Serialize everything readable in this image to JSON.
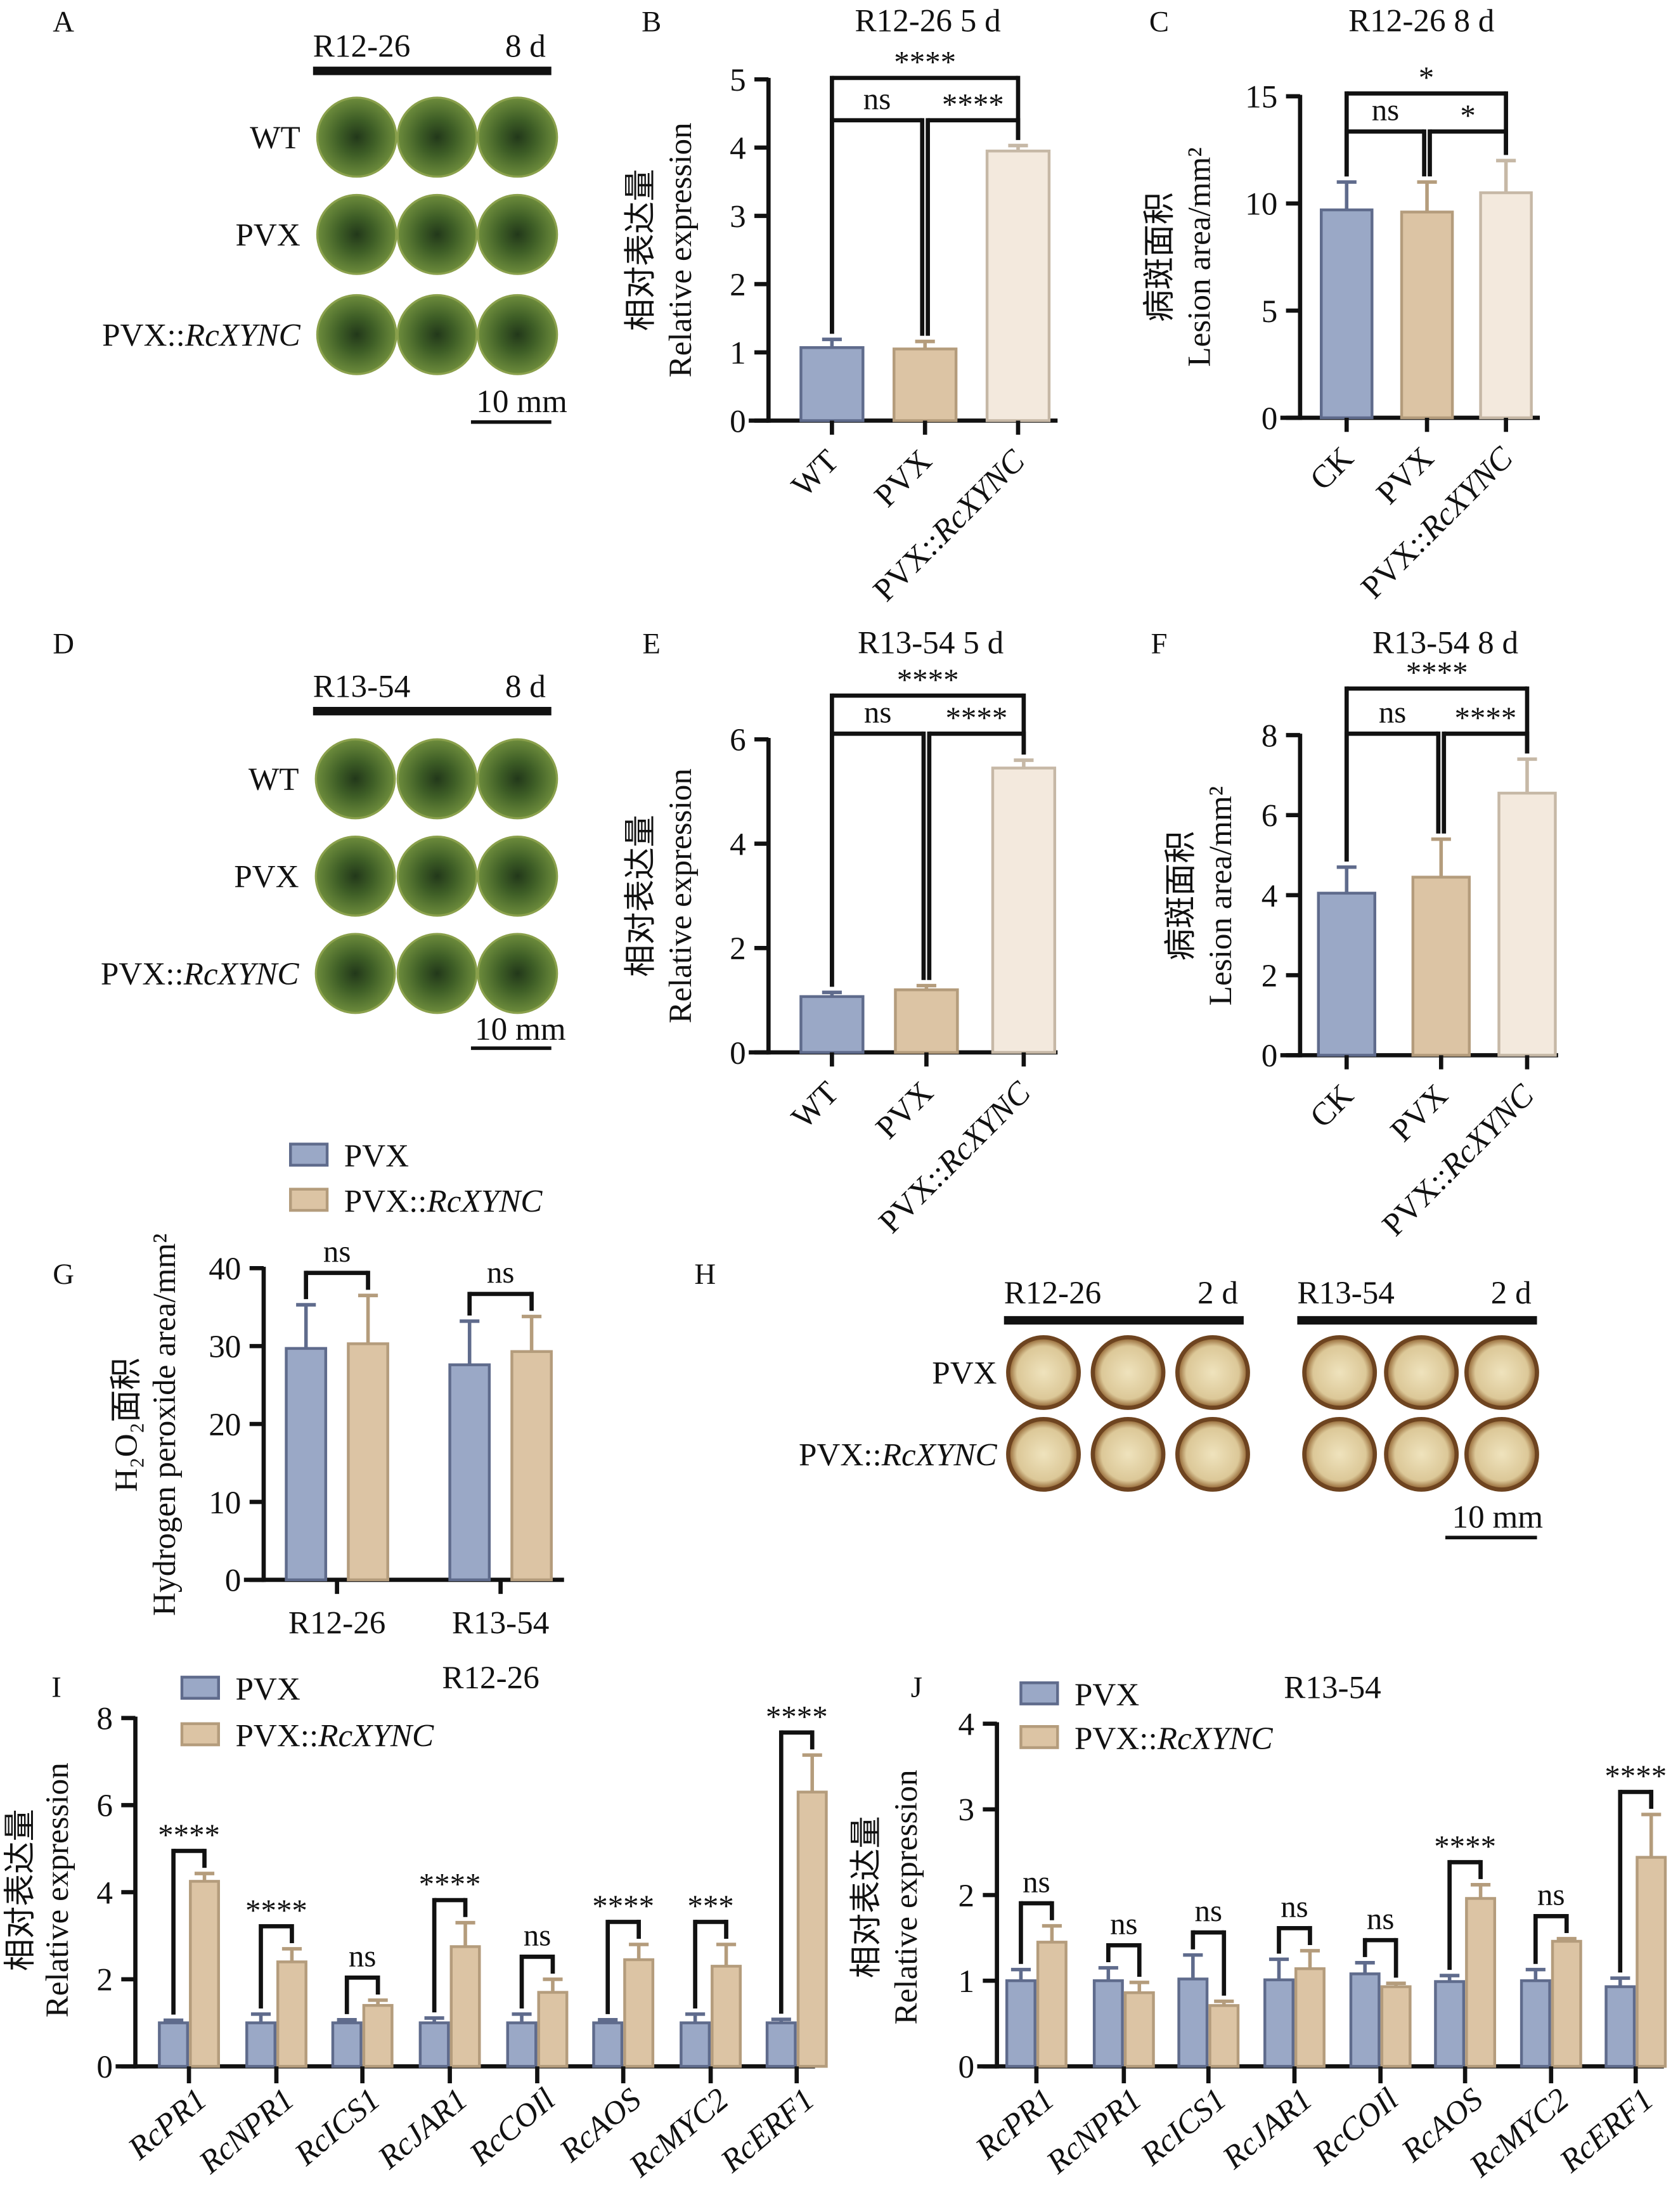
{
  "colors": {
    "blue": "#9aa8c6",
    "blue_edge": "#5f6b8c",
    "tan": "#dcc4a4",
    "tan_edge": "#b49c7c",
    "cream": "#f3e9dd",
    "cream_edge": "#c6b8a6",
    "leaf_dark": "#2e4a1c",
    "leaf_light": "#6d8c3c",
    "stain_edge": "#6e4420",
    "stain_fill": "#e2d3a8"
  },
  "photos": [
    {
      "panel": "A",
      "header": "R12-26",
      "time": "8 d",
      "rows": [
        "WT",
        "PVX",
        "PVX::RcXYNC"
      ],
      "scale": "10 mm",
      "style": "leaf"
    },
    {
      "panel": "D",
      "header": "R13-54",
      "time": "8 d",
      "rows": [
        "WT",
        "PVX",
        "PVX::RcXYNC"
      ],
      "scale": "10 mm",
      "style": "leaf"
    },
    {
      "panel": "H",
      "groups": [
        {
          "header": "R12-26",
          "time": "2 d"
        },
        {
          "header": "R13-54",
          "time": "2 d"
        }
      ],
      "rows": [
        "PVX",
        "PVX::RcXYNC"
      ],
      "scale": "10 mm",
      "style": "dab"
    }
  ],
  "chart_data": [
    {
      "panel": "B",
      "type": "bar",
      "title": "R12-26  5 d",
      "ylabel": [
        "相对表达量",
        "Relative expression"
      ],
      "categories": [
        "WT",
        "PVX",
        "PVX::RcXYNC"
      ],
      "values": [
        1.07,
        1.05,
        3.95
      ],
      "errors": [
        0.12,
        0.11,
        0.08
      ],
      "ylim": [
        0,
        5
      ],
      "yticks": [
        0,
        1,
        2,
        3,
        4,
        5
      ],
      "colors": [
        "blue",
        "tan",
        "cream"
      ],
      "sig": [
        {
          "from": 0,
          "to": 1,
          "label": "ns",
          "tier": 0
        },
        {
          "from": 1,
          "to": 2,
          "label": "****",
          "tier": 0
        },
        {
          "from": 0,
          "to": 2,
          "label": "****",
          "tier": 1
        }
      ]
    },
    {
      "panel": "C",
      "type": "bar",
      "title": "R12-26   8 d",
      "ylabel": [
        "病斑面积",
        "Lesion area/mm²"
      ],
      "categories": [
        "CK",
        "PVX",
        "PVX::RcXYNC"
      ],
      "values": [
        9.7,
        9.6,
        10.5
      ],
      "errors": [
        1.3,
        1.4,
        1.5
      ],
      "ylim": [
        0,
        15
      ],
      "yticks": [
        0,
        5,
        10,
        15
      ],
      "colors": [
        "blue",
        "tan",
        "cream"
      ],
      "sig": [
        {
          "from": 0,
          "to": 1,
          "label": "ns",
          "tier": 0
        },
        {
          "from": 1,
          "to": 2,
          "label": "*",
          "tier": 0
        },
        {
          "from": 0,
          "to": 2,
          "label": "*",
          "tier": 1
        }
      ]
    },
    {
      "panel": "E",
      "type": "bar",
      "title": "R13-54  5 d",
      "ylabel": [
        "相对表达量",
        "Relative expression"
      ],
      "categories": [
        "WT",
        "PVX",
        "PVX::RcXYNC"
      ],
      "values": [
        1.07,
        1.2,
        5.45
      ],
      "errors": [
        0.08,
        0.08,
        0.15
      ],
      "ylim": [
        0,
        6
      ],
      "yticks": [
        0,
        2,
        4,
        6
      ],
      "colors": [
        "blue",
        "tan",
        "cream"
      ],
      "sig": [
        {
          "from": 0,
          "to": 1,
          "label": "ns",
          "tier": 0
        },
        {
          "from": 1,
          "to": 2,
          "label": "****",
          "tier": 0
        },
        {
          "from": 0,
          "to": 2,
          "label": "****",
          "tier": 1
        }
      ]
    },
    {
      "panel": "F",
      "type": "bar",
      "title": "R13-54  8 d",
      "ylabel": [
        "病斑面积",
        "Lesion area/mm²"
      ],
      "categories": [
        "CK",
        "PVX",
        "PVX::RcXYNC"
      ],
      "values": [
        4.05,
        4.45,
        6.55
      ],
      "errors": [
        0.65,
        0.95,
        0.85
      ],
      "ylim": [
        0,
        8
      ],
      "yticks": [
        0,
        2,
        4,
        6,
        8
      ],
      "colors": [
        "blue",
        "tan",
        "cream"
      ],
      "sig": [
        {
          "from": 0,
          "to": 1,
          "label": "ns",
          "tier": 0
        },
        {
          "from": 1,
          "to": 2,
          "label": "****",
          "tier": 0
        },
        {
          "from": 0,
          "to": 2,
          "label": "****",
          "tier": 1
        }
      ]
    },
    {
      "panel": "G",
      "type": "grouped-bar",
      "ylabel": [
        "H₂O₂面积",
        "Hydrogen peroxide area/mm²"
      ],
      "categories": [
        "R12-26",
        "R13-54"
      ],
      "series": [
        {
          "name": "PVX",
          "values": [
            29.7,
            27.6
          ],
          "errors": [
            5.6,
            5.6
          ],
          "color": "blue"
        },
        {
          "name": "PVX::RcXYNC",
          "values": [
            30.3,
            29.3
          ],
          "errors": [
            6.2,
            4.5
          ],
          "color": "tan"
        }
      ],
      "ylim": [
        0,
        40
      ],
      "yticks": [
        0,
        10,
        20,
        30,
        40
      ],
      "sig": [
        "ns",
        "ns"
      ],
      "legend": "top"
    },
    {
      "panel": "I",
      "type": "grouped-bar",
      "title": "R12-26",
      "ylabel": [
        "相对表达量",
        "Relative expression"
      ],
      "categories": [
        "RcPR1",
        "RcNPR1",
        "RcICS1",
        "RcJAR1",
        "RcCOIl",
        "RcAOS",
        "RcMYC2",
        "RcERF1"
      ],
      "series": [
        {
          "name": "PVX",
          "values": [
            1.0,
            1.0,
            1.0,
            1.0,
            1.0,
            1.0,
            1.0,
            1.0
          ],
          "errors": [
            0.06,
            0.2,
            0.07,
            0.11,
            0.2,
            0.07,
            0.2,
            0.08
          ],
          "color": "blue"
        },
        {
          "name": "PVX::RcXYNC",
          "values": [
            4.25,
            2.4,
            1.4,
            2.75,
            1.7,
            2.45,
            2.3,
            6.3
          ],
          "errors": [
            0.18,
            0.3,
            0.12,
            0.55,
            0.3,
            0.35,
            0.5,
            0.85
          ],
          "color": "tan"
        }
      ],
      "ylim": [
        0,
        8
      ],
      "yticks": [
        0,
        2,
        4,
        6,
        8
      ],
      "sig": [
        "****",
        "****",
        "ns",
        "****",
        "ns",
        "****",
        "***",
        "****"
      ],
      "legend": "top-left"
    },
    {
      "panel": "J",
      "type": "grouped-bar",
      "title": "R13-54",
      "ylabel": [
        "相对表达量",
        "Relative expression"
      ],
      "categories": [
        "RcPR1",
        "RcNPR1",
        "RcICS1",
        "RcJAR1",
        "RcCOIl",
        "RcAOS",
        "RcMYC2",
        "RcERF1"
      ],
      "series": [
        {
          "name": "PVX",
          "values": [
            1.0,
            1.0,
            1.02,
            1.01,
            1.08,
            0.99,
            1.0,
            0.93
          ],
          "errors": [
            0.13,
            0.15,
            0.28,
            0.24,
            0.13,
            0.07,
            0.13,
            0.1
          ],
          "color": "blue"
        },
        {
          "name": "PVX::RcXYNC",
          "values": [
            1.45,
            0.86,
            0.71,
            1.14,
            0.93,
            1.96,
            1.46,
            2.44
          ],
          "errors": [
            0.19,
            0.12,
            0.05,
            0.21,
            0.04,
            0.16,
            0.03,
            0.5
          ],
          "color": "tan"
        }
      ],
      "ylim": [
        0,
        4
      ],
      "yticks": [
        0,
        1,
        2,
        3,
        4
      ],
      "sig": [
        "ns",
        "ns",
        "ns",
        "ns",
        "ns",
        "****",
        "ns",
        "****"
      ],
      "legend": "top-left"
    }
  ]
}
